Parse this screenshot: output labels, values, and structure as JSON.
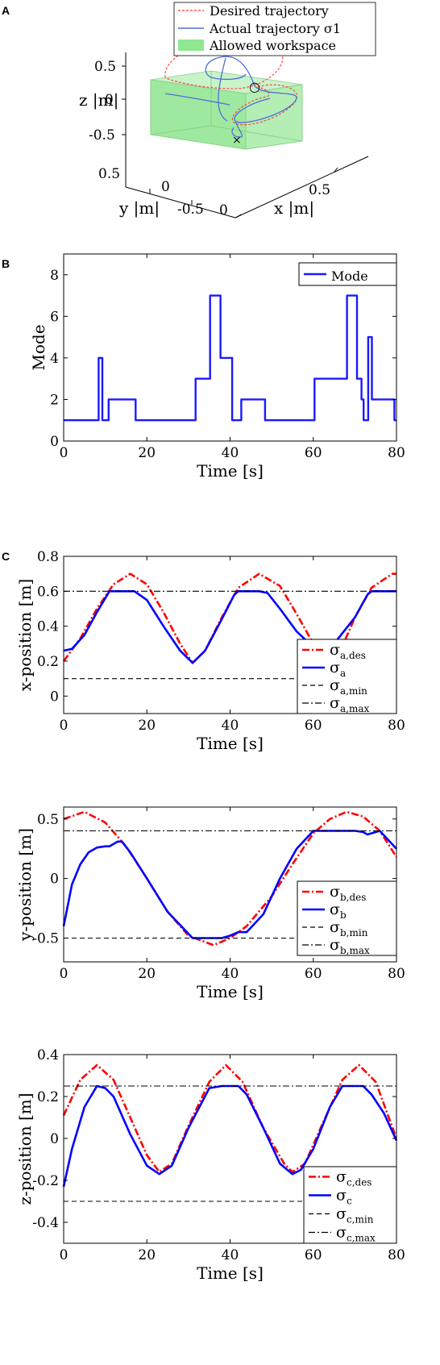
{
  "panels": {
    "a": "A",
    "b": "B",
    "c": "C"
  },
  "chart_data": [
    {
      "type": "line",
      "panel": "A",
      "kind": "3d-trajectory",
      "xlabel": "x |m|",
      "ylabel": "y |m|",
      "zlabel": "z |m|",
      "x_ticks": [
        "0",
        "0.5"
      ],
      "y_ticks": [
        "-0.5",
        "0",
        "0.5"
      ],
      "z_ticks": [
        "-0.5",
        "0",
        "0.5"
      ],
      "legend": [
        "Desired trajectory",
        "Actual trajectory σ1",
        "Allowed workspace"
      ],
      "markers": {
        "start": "○",
        "end": "×"
      },
      "colors": {
        "desired": "#ff3333",
        "actual": "#4d6fd9",
        "workspace": "#8fe88f"
      }
    },
    {
      "type": "line",
      "panel": "B",
      "step": true,
      "xlabel": "Time [s]",
      "ylabel": "Mode",
      "xlim": [
        0,
        80
      ],
      "ylim": [
        0,
        9
      ],
      "x_ticks": [
        0,
        20,
        40,
        60,
        80
      ],
      "y_ticks": [
        0,
        2,
        4,
        6,
        8
      ],
      "legend": [
        "Mode"
      ],
      "series": [
        {
          "name": "Mode",
          "x": [
            0,
            8.4,
            8.4,
            9.3,
            9.3,
            10.8,
            10.8,
            17.3,
            17.3,
            31.7,
            31.7,
            35.2,
            35.2,
            36.2,
            36.2,
            37.7,
            37.7,
            40.5,
            40.5,
            41.2,
            41.2,
            42.7,
            42.7,
            48.4,
            48.4,
            60.3,
            60.3,
            68.1,
            68.1,
            70.5,
            70.5,
            71.6,
            71.6,
            72.1,
            72.1,
            73.2,
            73.2,
            74.1,
            74.1,
            75.4,
            75.4,
            79.5,
            79.5,
            80
          ],
          "y": [
            1,
            1,
            4,
            4,
            1,
            1,
            2,
            2,
            1,
            1,
            3,
            3,
            7,
            7,
            7,
            7,
            4,
            4,
            1,
            1,
            1,
            1,
            2,
            2,
            1,
            1,
            3,
            3,
            7,
            7,
            3,
            3,
            2,
            2,
            1,
            1,
            5,
            5,
            2,
            2,
            2,
            2,
            1,
            1
          ]
        }
      ],
      "colors": {
        "Mode": "#1a1aff"
      }
    },
    {
      "type": "line",
      "panel": "C",
      "xlabel": "Time [s]",
      "ylabel": "x-position [m]",
      "xlim": [
        0,
        80
      ],
      "ylim": [
        -0.1,
        0.8
      ],
      "x_ticks": [
        0,
        20,
        40,
        60,
        80
      ],
      "y_ticks": [
        "0",
        "0.2",
        "0.4",
        "0.6",
        "0.8"
      ],
      "legend": [
        "σa,des",
        "σa",
        "σa,min",
        "σa,max"
      ],
      "series": [
        {
          "name": "σa,des",
          "x": [
            0,
            4,
            8,
            12,
            16,
            20,
            24,
            28,
            31,
            34,
            38,
            42,
            47,
            52,
            56,
            60,
            63,
            66,
            70,
            74,
            79,
            80
          ],
          "y": [
            0.2,
            0.33,
            0.5,
            0.64,
            0.7,
            0.64,
            0.48,
            0.3,
            0.19,
            0.26,
            0.45,
            0.62,
            0.7,
            0.63,
            0.47,
            0.3,
            0.2,
            0.23,
            0.45,
            0.62,
            0.7,
            0.7
          ]
        },
        {
          "name": "σa",
          "x": [
            0,
            2,
            5,
            8,
            11,
            14,
            17,
            20,
            24,
            28,
            31,
            34,
            38,
            41,
            42,
            47,
            49,
            52,
            56,
            60,
            62,
            64,
            65,
            70,
            73,
            74,
            80
          ],
          "y": [
            0.26,
            0.27,
            0.35,
            0.48,
            0.6,
            0.6,
            0.6,
            0.55,
            0.4,
            0.26,
            0.19,
            0.26,
            0.44,
            0.58,
            0.6,
            0.6,
            0.59,
            0.5,
            0.37,
            0.28,
            0.25,
            0.25,
            0.3,
            0.45,
            0.58,
            0.6,
            0.6
          ]
        },
        {
          "name": "σa,min",
          "x": [
            0,
            80
          ],
          "y": [
            0.1,
            0.1
          ]
        },
        {
          "name": "σa,max",
          "x": [
            0,
            80
          ],
          "y": [
            0.6,
            0.6
          ]
        }
      ]
    },
    {
      "type": "line",
      "panel": "C",
      "xlabel": "Time [s]",
      "ylabel": "y-position [m]",
      "xlim": [
        0,
        80
      ],
      "ylim": [
        -0.7,
        0.6
      ],
      "x_ticks": [
        0,
        20,
        40,
        60,
        80
      ],
      "y_ticks": [
        "-0.5",
        "0",
        "0.5"
      ],
      "legend": [
        "σb,des",
        "σb",
        "σb,min",
        "σb,max"
      ],
      "series": [
        {
          "name": "σb,des",
          "x": [
            0,
            5,
            10,
            15,
            20,
            25,
            30,
            36,
            40,
            44,
            50,
            55,
            60,
            64,
            68,
            72,
            76,
            80
          ],
          "y": [
            0.5,
            0.56,
            0.47,
            0.27,
            0.0,
            -0.28,
            -0.48,
            -0.56,
            -0.5,
            -0.4,
            -0.15,
            0.12,
            0.38,
            0.5,
            0.56,
            0.52,
            0.4,
            0.18
          ]
        },
        {
          "name": "σb",
          "x": [
            0,
            2,
            4,
            6,
            8,
            10,
            11,
            13,
            14,
            16,
            20,
            25,
            31,
            38,
            40,
            42,
            44,
            48,
            52,
            56,
            60,
            70,
            72,
            73,
            76,
            80
          ],
          "y": [
            -0.4,
            -0.05,
            0.12,
            0.22,
            0.26,
            0.27,
            0.27,
            0.31,
            0.31,
            0.22,
            0.0,
            -0.28,
            -0.5,
            -0.5,
            -0.48,
            -0.45,
            -0.45,
            -0.3,
            0.0,
            0.25,
            0.4,
            0.4,
            0.39,
            0.37,
            0.4,
            0.25
          ]
        },
        {
          "name": "σb,min",
          "x": [
            0,
            80
          ],
          "y": [
            -0.5,
            -0.5
          ]
        },
        {
          "name": "σb,max",
          "x": [
            0,
            80
          ],
          "y": [
            0.4,
            0.4
          ]
        }
      ]
    },
    {
      "type": "line",
      "panel": "C",
      "xlabel": "Time [s]",
      "ylabel": "z-position [m]",
      "xlim": [
        0,
        80
      ],
      "ylim": [
        -0.5,
        0.4
      ],
      "x_ticks": [
        0,
        20,
        40,
        60,
        80
      ],
      "y_ticks": [
        "-0.4",
        "-0.2",
        "0",
        "0.2",
        "0.4"
      ],
      "legend": [
        "σc,des",
        "σc",
        "σc,min",
        "σc,max"
      ],
      "series": [
        {
          "name": "σc,des",
          "x": [
            0,
            4,
            8,
            12,
            16,
            20,
            23,
            26,
            30,
            35,
            39,
            43,
            48,
            53,
            55,
            58,
            62,
            67,
            71,
            75,
            80
          ],
          "y": [
            0.11,
            0.28,
            0.35,
            0.28,
            0.1,
            -0.08,
            -0.16,
            -0.12,
            0.06,
            0.27,
            0.35,
            0.27,
            0.05,
            -0.12,
            -0.16,
            -0.12,
            0.06,
            0.28,
            0.35,
            0.27,
            0.0
          ]
        },
        {
          "name": "σc",
          "x": [
            0,
            2,
            5,
            8,
            10,
            12,
            16,
            20,
            23,
            26,
            30,
            35,
            38,
            42,
            44,
            48,
            52,
            55,
            57,
            60,
            64,
            67,
            69,
            72,
            74,
            77,
            80
          ],
          "y": [
            -0.23,
            -0.05,
            0.15,
            0.25,
            0.24,
            0.2,
            0.02,
            -0.13,
            -0.17,
            -0.13,
            0.05,
            0.24,
            0.25,
            0.25,
            0.21,
            0.05,
            -0.12,
            -0.17,
            -0.15,
            -0.05,
            0.15,
            0.25,
            0.25,
            0.25,
            0.21,
            0.12,
            -0.01
          ]
        },
        {
          "name": "σc,min",
          "x": [
            0,
            80
          ],
          "y": [
            -0.3,
            -0.3
          ]
        },
        {
          "name": "σc,max",
          "x": [
            0,
            80
          ],
          "y": [
            0.25,
            0.25
          ]
        }
      ]
    }
  ],
  "colors": {
    "desired": "#ff0000",
    "actual": "#0000ff",
    "bound": "#000000"
  }
}
